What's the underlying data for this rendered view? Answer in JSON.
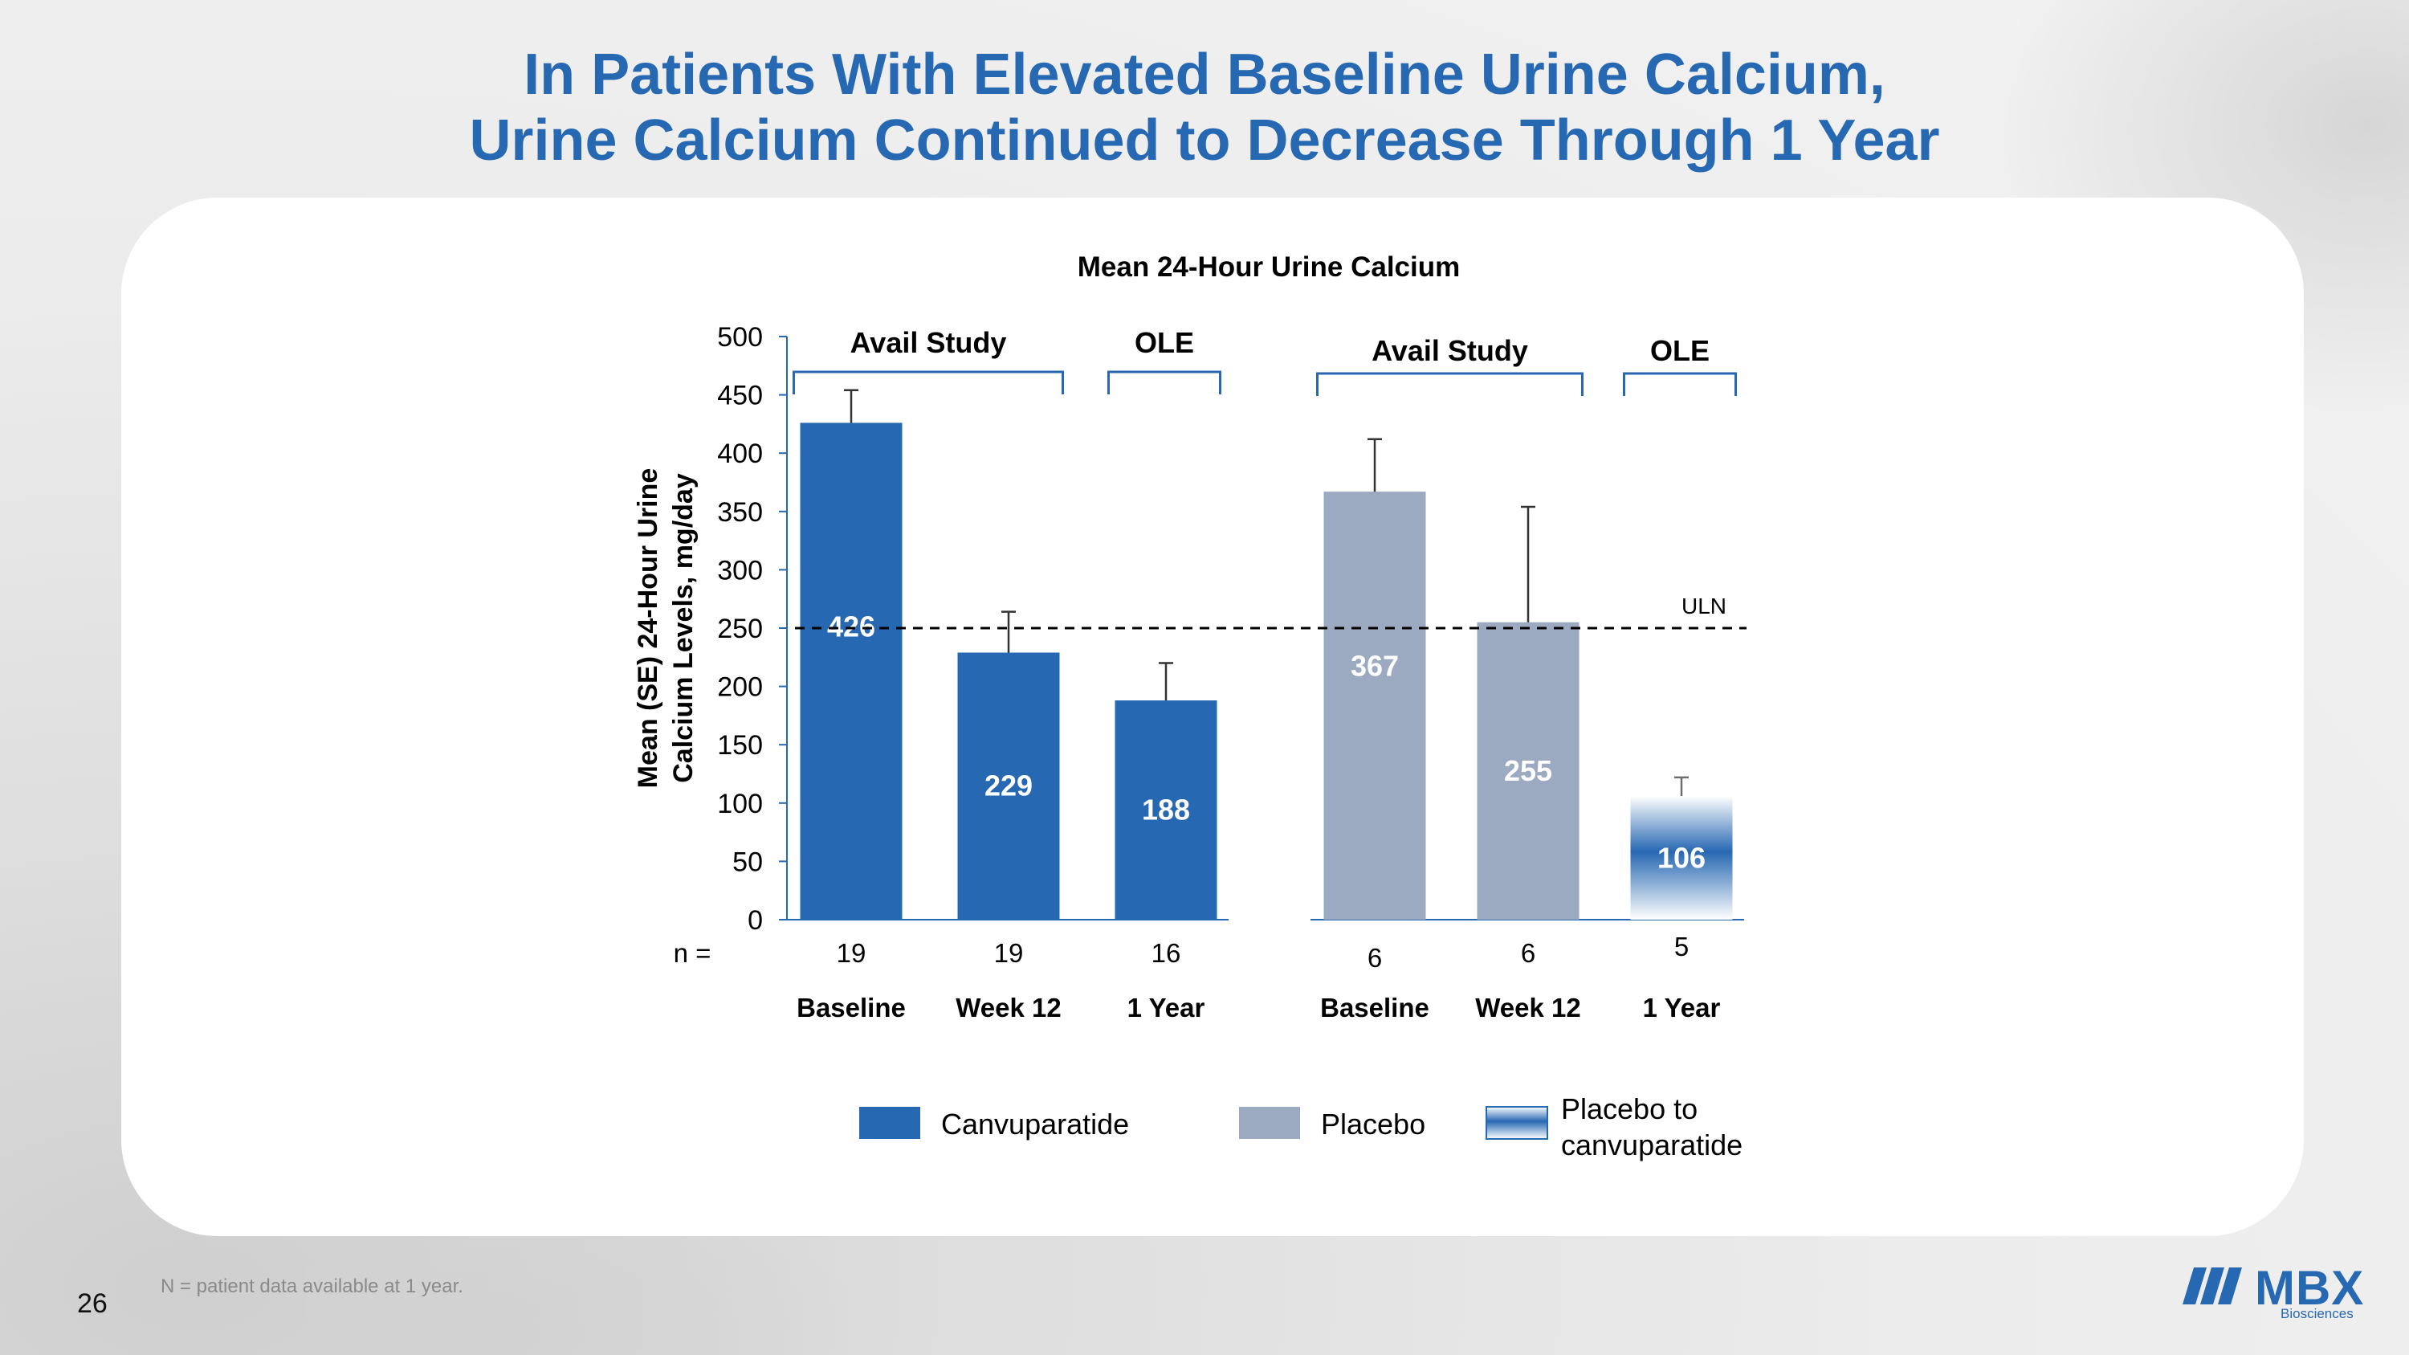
{
  "slide": {
    "title_line1": "In Patients With Elevated Baseline Urine Calcium,",
    "title_line2": "Urine Calcium Continued to Decrease Through 1 Year",
    "page_number": "26",
    "footnote": "N = patient data available at 1 year.",
    "logo": {
      "text": "MBX",
      "subtext": "Biosciences",
      "color": "#2768b2"
    }
  },
  "chart_data": {
    "type": "bar",
    "title": "Mean 24-Hour Urine Calcium",
    "ylabel": "Mean (SE) 24-Hour Urine Calcium Levels, mg/day",
    "ylabel_lines": [
      "Mean (SE) 24-Hour Urine",
      "Calcium Levels, mg/day"
    ],
    "ylim": [
      0,
      500
    ],
    "yticks": [
      0,
      50,
      100,
      150,
      200,
      250,
      300,
      350,
      400,
      450,
      500
    ],
    "n_label": "n =",
    "reference_line": {
      "label": "ULN",
      "value": 250,
      "style": "dashed"
    },
    "groups": [
      {
        "brackets": [
          {
            "label": "Avail Study",
            "span": [
              "Baseline",
              "Week 12"
            ]
          },
          {
            "label": "OLE",
            "span": [
              "1 Year"
            ]
          }
        ],
        "bars": [
          {
            "category": "Baseline",
            "value": 426,
            "error_upper": 454,
            "n": "19",
            "series": "Canvuparatide"
          },
          {
            "category": "Week 12",
            "value": 229,
            "error_upper": 264,
            "n": "19",
            "series": "Canvuparatide"
          },
          {
            "category": "1 Year",
            "value": 188,
            "error_upper": 220,
            "n": "16",
            "series": "Canvuparatide"
          }
        ]
      },
      {
        "brackets": [
          {
            "label": "Avail Study",
            "span": [
              "Baseline",
              "Week 12"
            ]
          },
          {
            "label": "OLE",
            "span": [
              "1 Year"
            ]
          }
        ],
        "bars": [
          {
            "category": "Baseline",
            "value": 367,
            "error_upper": 412,
            "n": "6",
            "series": "Placebo"
          },
          {
            "category": "Week 12",
            "value": 255,
            "error_upper": 354,
            "n": "6",
            "series": "Placebo"
          },
          {
            "category": "1 Year",
            "value": 106,
            "error_upper": 122,
            "n": "5",
            "series": "Placebo to canvuparatide"
          }
        ]
      }
    ],
    "legend": [
      {
        "name": "Canvuparatide",
        "color": "#2768b2"
      },
      {
        "name": "Placebo",
        "color": "#9ba9c1"
      },
      {
        "name": "Placebo to canvuparatide",
        "name_lines": [
          "Placebo to",
          "canvuparatide"
        ],
        "color_top": "#ffffff",
        "color_bottom": "#2768b2"
      }
    ],
    "legend_position": "bottom",
    "grid": false
  }
}
